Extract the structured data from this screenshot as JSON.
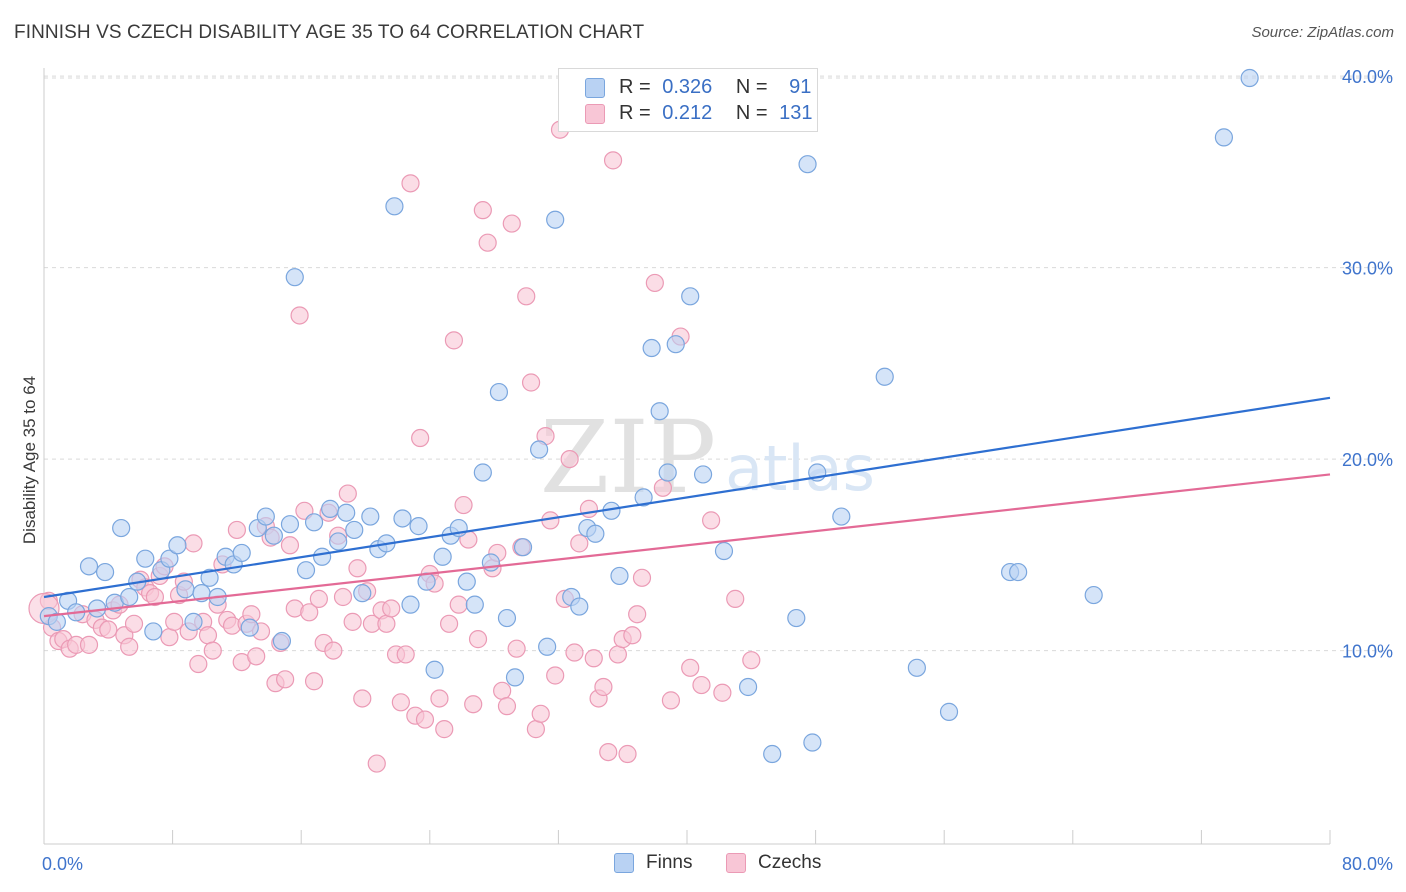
{
  "header": {
    "title": "FINNISH VS CZECH DISABILITY AGE 35 TO 64 CORRELATION CHART",
    "source": "Source: ZipAtlas.com"
  },
  "watermark": {
    "zip": "ZIP",
    "atlas": "atlas"
  },
  "legend": {
    "finns": {
      "r_label": "R =",
      "r_value": "0.326",
      "n_label": "N =",
      "n_value": "91"
    },
    "czechs": {
      "r_label": "R =",
      "r_value": "0.212",
      "n_label": "N =",
      "n_value": "131"
    }
  },
  "bottom_legend": {
    "finns": "Finns",
    "czechs": "Czechs"
  },
  "colors": {
    "finns_fill": "#b9d2f3",
    "finns_stroke": "#7aa6de",
    "finns_line": "#2e6fd1",
    "czechs_fill": "#f8c6d6",
    "czechs_stroke": "#eb9ab5",
    "czechs_line": "#e36a96",
    "grid": "#d9d9d9",
    "tick_label": "#3f74cc"
  },
  "chart_data": {
    "type": "scatter",
    "title": "FINNISH VS CZECH DISABILITY AGE 35 TO 64 CORRELATION CHART",
    "xlabel": "",
    "ylabel": "Disability Age 35 to 64",
    "xlim": [
      0,
      80
    ],
    "ylim": [
      0,
      42
    ],
    "x_tick_labels": [
      "0.0%",
      "80.0%"
    ],
    "y_ticks": [
      10,
      20,
      30,
      40
    ],
    "y_tick_labels": [
      "10.0%",
      "20.0%",
      "30.0%",
      "40.0%"
    ],
    "grid": true,
    "legend_position": "top-center",
    "series": [
      {
        "name": "Finns",
        "trend": {
          "x": [
            0,
            80
          ],
          "y": [
            12.8,
            23.2
          ]
        },
        "points": [
          [
            0.3,
            11.8
          ],
          [
            0.8,
            11.5
          ],
          [
            1.5,
            12.6
          ],
          [
            2.0,
            12.0
          ],
          [
            2.8,
            14.4
          ],
          [
            3.3,
            12.2
          ],
          [
            3.8,
            14.1
          ],
          [
            4.4,
            12.5
          ],
          [
            4.8,
            16.4
          ],
          [
            5.3,
            12.8
          ],
          [
            5.8,
            13.6
          ],
          [
            6.3,
            14.8
          ],
          [
            6.8,
            11.0
          ],
          [
            7.3,
            14.2
          ],
          [
            7.8,
            14.8
          ],
          [
            8.3,
            15.5
          ],
          [
            8.8,
            13.2
          ],
          [
            9.3,
            11.5
          ],
          [
            9.8,
            13.0
          ],
          [
            10.3,
            13.8
          ],
          [
            10.8,
            12.8
          ],
          [
            11.3,
            14.9
          ],
          [
            11.8,
            14.5
          ],
          [
            12.3,
            15.1
          ],
          [
            12.8,
            11.2
          ],
          [
            13.3,
            16.4
          ],
          [
            13.8,
            17.0
          ],
          [
            14.3,
            16.0
          ],
          [
            14.8,
            10.5
          ],
          [
            15.3,
            16.6
          ],
          [
            15.6,
            29.5
          ],
          [
            16.3,
            14.2
          ],
          [
            16.8,
            16.7
          ],
          [
            17.3,
            14.9
          ],
          [
            17.8,
            17.4
          ],
          [
            18.3,
            15.7
          ],
          [
            18.8,
            17.2
          ],
          [
            19.3,
            16.3
          ],
          [
            19.8,
            13.0
          ],
          [
            20.3,
            17.0
          ],
          [
            20.8,
            15.3
          ],
          [
            21.3,
            15.6
          ],
          [
            21.8,
            33.2
          ],
          [
            22.3,
            16.9
          ],
          [
            22.8,
            12.4
          ],
          [
            23.3,
            16.5
          ],
          [
            23.8,
            13.6
          ],
          [
            24.3,
            9.0
          ],
          [
            24.8,
            14.9
          ],
          [
            25.3,
            16.0
          ],
          [
            25.8,
            16.4
          ],
          [
            26.3,
            13.6
          ],
          [
            26.8,
            12.4
          ],
          [
            27.3,
            19.3
          ],
          [
            27.8,
            14.6
          ],
          [
            28.3,
            23.5
          ],
          [
            28.8,
            11.7
          ],
          [
            29.3,
            8.6
          ],
          [
            29.8,
            15.4
          ],
          [
            30.8,
            20.5
          ],
          [
            31.3,
            10.2
          ],
          [
            31.8,
            32.5
          ],
          [
            32.8,
            12.8
          ],
          [
            33.3,
            12.3
          ],
          [
            33.8,
            16.4
          ],
          [
            34.3,
            16.1
          ],
          [
            35.3,
            17.3
          ],
          [
            35.8,
            13.9
          ],
          [
            37.3,
            18.0
          ],
          [
            37.8,
            25.8
          ],
          [
            38.3,
            22.5
          ],
          [
            38.8,
            19.3
          ],
          [
            39.3,
            26.0
          ],
          [
            40.2,
            28.5
          ],
          [
            41.0,
            19.2
          ],
          [
            42.3,
            15.2
          ],
          [
            43.8,
            8.1
          ],
          [
            45.3,
            4.6
          ],
          [
            46.8,
            11.7
          ],
          [
            47.8,
            5.2
          ],
          [
            48.1,
            19.3
          ],
          [
            47.5,
            35.4
          ],
          [
            49.6,
            17.0
          ],
          [
            52.3,
            24.3
          ],
          [
            54.3,
            9.1
          ],
          [
            56.3,
            6.8
          ],
          [
            60.1,
            14.1
          ],
          [
            60.6,
            14.1
          ],
          [
            65.3,
            12.9
          ],
          [
            73.4,
            36.8
          ],
          [
            75.0,
            39.9
          ]
        ]
      },
      {
        "name": "Czechs",
        "trend": {
          "x": [
            0,
            80
          ],
          "y": [
            11.8,
            19.2
          ]
        },
        "points": [
          [
            0.3,
            12.6
          ],
          [
            0.5,
            11.2
          ],
          [
            0.9,
            10.5
          ],
          [
            1.2,
            10.6
          ],
          [
            1.6,
            10.1
          ],
          [
            2.0,
            10.3
          ],
          [
            2.4,
            11.9
          ],
          [
            2.8,
            10.3
          ],
          [
            3.2,
            11.6
          ],
          [
            3.6,
            11.2
          ],
          [
            4.0,
            11.1
          ],
          [
            4.3,
            12.1
          ],
          [
            4.7,
            12.4
          ],
          [
            5.0,
            10.8
          ],
          [
            5.3,
            10.2
          ],
          [
            5.6,
            11.4
          ],
          [
            6.0,
            13.7
          ],
          [
            6.3,
            13.3
          ],
          [
            6.6,
            13.0
          ],
          [
            6.9,
            12.8
          ],
          [
            7.2,
            13.9
          ],
          [
            7.5,
            14.4
          ],
          [
            7.8,
            10.7
          ],
          [
            8.1,
            11.5
          ],
          [
            8.4,
            12.9
          ],
          [
            8.7,
            13.6
          ],
          [
            9.0,
            11.0
          ],
          [
            9.3,
            15.6
          ],
          [
            9.6,
            9.3
          ],
          [
            9.9,
            11.5
          ],
          [
            10.2,
            10.8
          ],
          [
            10.5,
            10.0
          ],
          [
            10.8,
            12.4
          ],
          [
            11.1,
            14.5
          ],
          [
            11.4,
            11.6
          ],
          [
            11.7,
            11.3
          ],
          [
            12.0,
            16.3
          ],
          [
            12.3,
            9.4
          ],
          [
            12.6,
            11.4
          ],
          [
            12.9,
            11.9
          ],
          [
            13.2,
            9.7
          ],
          [
            13.5,
            11.0
          ],
          [
            13.8,
            16.5
          ],
          [
            14.1,
            15.9
          ],
          [
            14.4,
            8.3
          ],
          [
            14.7,
            10.4
          ],
          [
            15.0,
            8.5
          ],
          [
            15.3,
            15.5
          ],
          [
            15.6,
            12.2
          ],
          [
            15.9,
            27.5
          ],
          [
            16.2,
            17.3
          ],
          [
            16.5,
            12.0
          ],
          [
            16.8,
            8.4
          ],
          [
            17.1,
            12.7
          ],
          [
            17.4,
            10.4
          ],
          [
            17.7,
            17.2
          ],
          [
            18.0,
            10.0
          ],
          [
            18.3,
            16.0
          ],
          [
            18.6,
            12.8
          ],
          [
            18.9,
            18.2
          ],
          [
            19.2,
            11.5
          ],
          [
            19.5,
            14.3
          ],
          [
            19.8,
            7.5
          ],
          [
            20.1,
            13.1
          ],
          [
            20.4,
            11.4
          ],
          [
            20.7,
            4.1
          ],
          [
            21.0,
            12.1
          ],
          [
            21.3,
            11.4
          ],
          [
            21.6,
            12.2
          ],
          [
            21.9,
            9.8
          ],
          [
            22.2,
            7.3
          ],
          [
            22.5,
            9.8
          ],
          [
            22.8,
            34.4
          ],
          [
            23.1,
            6.6
          ],
          [
            23.4,
            21.1
          ],
          [
            23.7,
            6.4
          ],
          [
            24.0,
            14.0
          ],
          [
            24.3,
            13.5
          ],
          [
            24.6,
            7.5
          ],
          [
            24.9,
            5.9
          ],
          [
            25.2,
            11.4
          ],
          [
            25.5,
            26.2
          ],
          [
            25.8,
            12.4
          ],
          [
            26.1,
            17.6
          ],
          [
            26.4,
            15.8
          ],
          [
            26.7,
            7.2
          ],
          [
            27.0,
            10.6
          ],
          [
            27.3,
            33.0
          ],
          [
            27.6,
            31.3
          ],
          [
            27.9,
            14.3
          ],
          [
            28.2,
            15.1
          ],
          [
            28.5,
            7.9
          ],
          [
            28.8,
            7.1
          ],
          [
            29.1,
            32.3
          ],
          [
            29.4,
            10.1
          ],
          [
            29.7,
            15.4
          ],
          [
            30.0,
            28.5
          ],
          [
            30.3,
            24.0
          ],
          [
            30.6,
            5.9
          ],
          [
            30.9,
            6.7
          ],
          [
            31.2,
            21.2
          ],
          [
            31.5,
            16.8
          ],
          [
            31.8,
            8.7
          ],
          [
            32.1,
            37.2
          ],
          [
            32.4,
            12.7
          ],
          [
            32.7,
            20.0
          ],
          [
            33.0,
            9.9
          ],
          [
            33.3,
            15.6
          ],
          [
            33.6,
            37.8
          ],
          [
            33.9,
            17.4
          ],
          [
            34.2,
            9.6
          ],
          [
            34.5,
            7.5
          ],
          [
            34.8,
            8.1
          ],
          [
            35.1,
            4.7
          ],
          [
            35.4,
            35.6
          ],
          [
            35.7,
            9.8
          ],
          [
            36.0,
            10.6
          ],
          [
            36.3,
            4.6
          ],
          [
            36.6,
            10.8
          ],
          [
            36.9,
            11.9
          ],
          [
            37.2,
            13.8
          ],
          [
            38.0,
            29.2
          ],
          [
            38.5,
            18.5
          ],
          [
            39.0,
            7.4
          ],
          [
            39.6,
            26.4
          ],
          [
            40.2,
            9.1
          ],
          [
            40.9,
            8.2
          ],
          [
            41.5,
            16.8
          ],
          [
            42.2,
            7.8
          ],
          [
            43.0,
            12.7
          ],
          [
            44.0,
            9.5
          ]
        ]
      }
    ]
  }
}
